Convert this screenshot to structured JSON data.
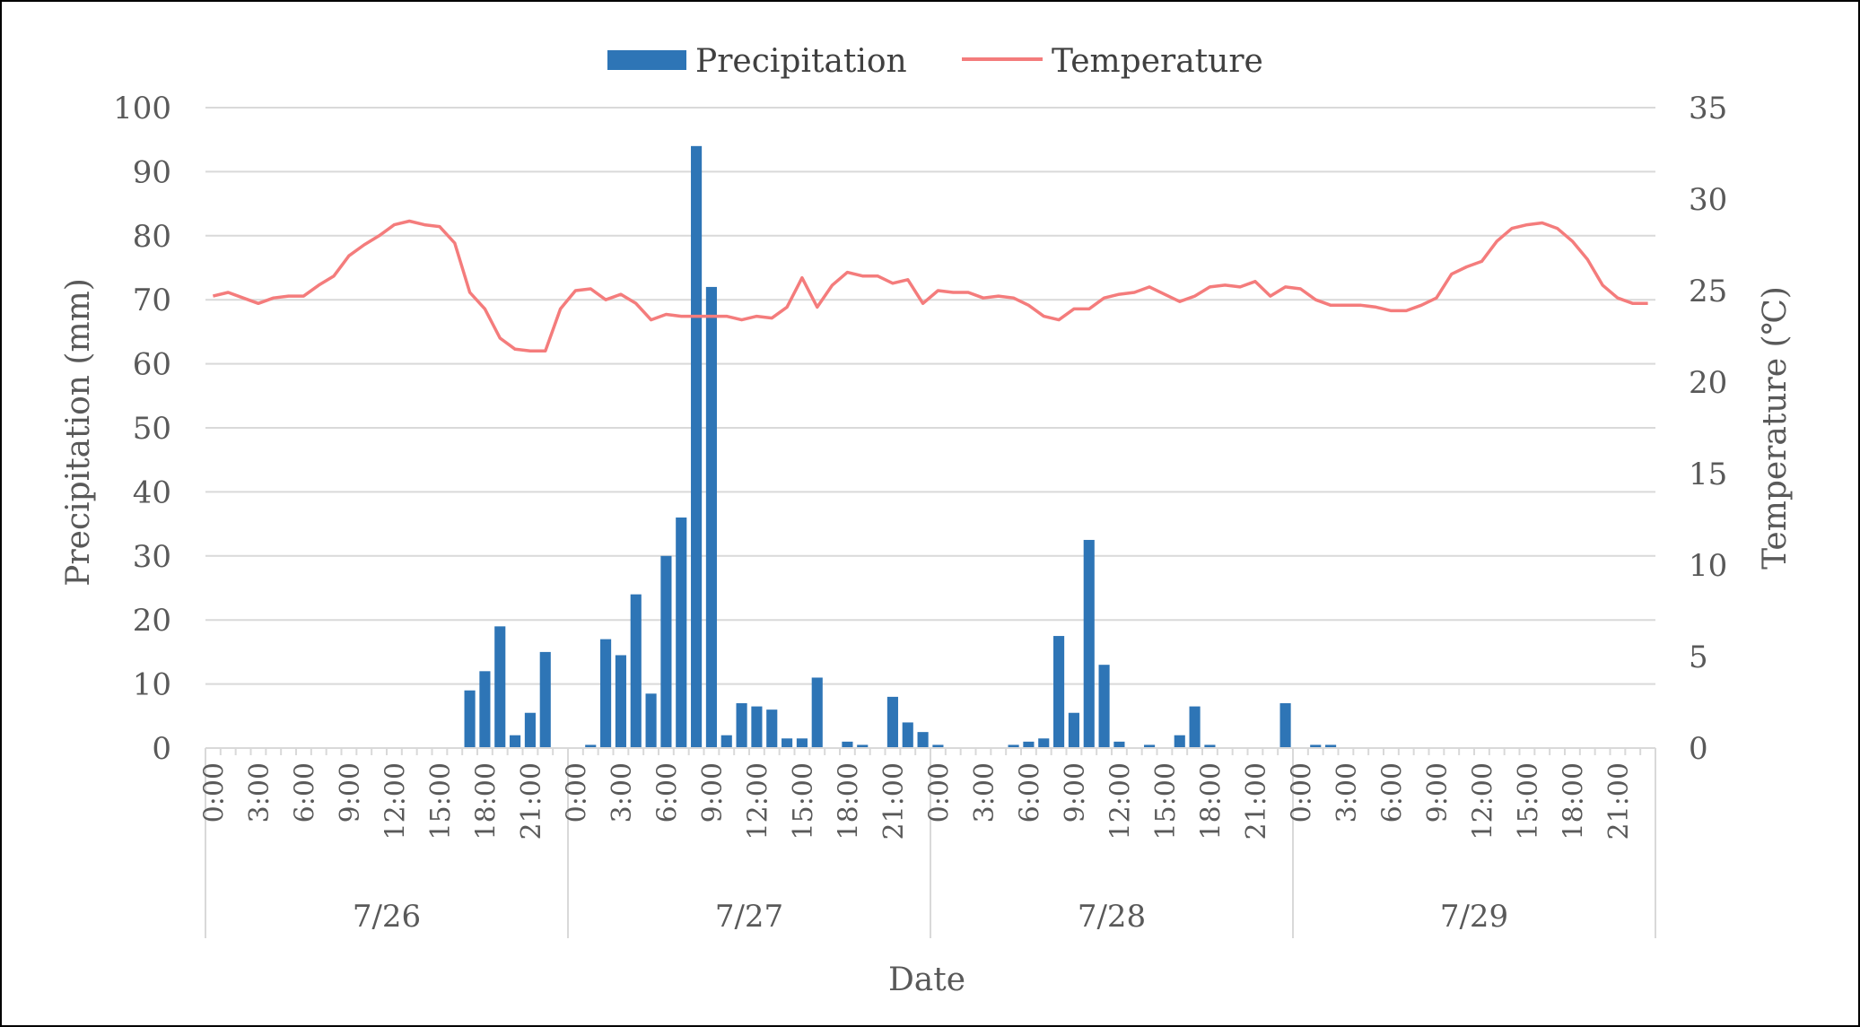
{
  "colors": {
    "precipitation": "#2e75b6",
    "temperature": "#f47c7c",
    "grid": "#d9d9d9",
    "text": "#595959"
  },
  "chart_data": {
    "type": "bar",
    "xlabel": "Date",
    "ylabel_left": "Precipitation (mm)",
    "ylabel_right": "Temperature (℃)",
    "ylim_left": [
      0,
      100
    ],
    "ylim_right": [
      0,
      35
    ],
    "yticks_left": [
      "0",
      "10",
      "20",
      "30",
      "40",
      "50",
      "60",
      "70",
      "80",
      "90",
      "100"
    ],
    "yticks_right": [
      "0",
      "5",
      "10",
      "15",
      "20",
      "25",
      "30",
      "35"
    ],
    "grid": "horizontal",
    "legend": {
      "placement": "top-center",
      "entries": [
        "Precipitation",
        "Temperature"
      ]
    },
    "days": [
      "7/26",
      "7/27",
      "7/28",
      "7/29"
    ],
    "hour_labels": [
      "0:00",
      "3:00",
      "6:00",
      "9:00",
      "12:00",
      "15:00",
      "18:00",
      "21:00"
    ],
    "series": [
      {
        "name": "Precipitation",
        "type": "bar",
        "axis": "left",
        "values": [
          0,
          0,
          0,
          0,
          0,
          0,
          0,
          0,
          0,
          0,
          0,
          0,
          0,
          0,
          0,
          0,
          0,
          9,
          12,
          19,
          2,
          5.5,
          15,
          0,
          0,
          0.5,
          17,
          14.5,
          24,
          8.5,
          30,
          36,
          94,
          72,
          2,
          7,
          6.5,
          6,
          1.5,
          1.5,
          11,
          0,
          1,
          0.5,
          0,
          8,
          4,
          2.5,
          0.5,
          0,
          0,
          0,
          0,
          0.5,
          1,
          1.5,
          17.5,
          5.5,
          32.5,
          13,
          1,
          0,
          0.5,
          0,
          2,
          6.5,
          0.5,
          0,
          0,
          0,
          0,
          7,
          0,
          0.5,
          0.5,
          0,
          0,
          0,
          0,
          0,
          0,
          0,
          0,
          0,
          0,
          0,
          0,
          0,
          0,
          0,
          0,
          0,
          0,
          0,
          0,
          0
        ]
      },
      {
        "name": "Temperature",
        "type": "line",
        "axis": "right",
        "values": [
          24.7,
          24.9,
          24.6,
          24.3,
          24.6,
          24.7,
          24.7,
          25.3,
          25.8,
          26.9,
          27.5,
          28.0,
          28.6,
          28.8,
          28.6,
          28.5,
          27.6,
          24.9,
          24.0,
          22.4,
          21.8,
          21.7,
          21.7,
          24.0,
          25.0,
          25.1,
          24.5,
          24.8,
          24.3,
          23.4,
          23.7,
          23.6,
          23.6,
          23.6,
          23.6,
          23.4,
          23.6,
          23.5,
          24.1,
          25.7,
          24.1,
          25.3,
          26.0,
          25.8,
          25.8,
          25.4,
          25.6,
          24.3,
          25.0,
          24.9,
          24.9,
          24.6,
          24.7,
          24.6,
          24.2,
          23.6,
          23.4,
          24.0,
          24.0,
          24.6,
          24.8,
          24.9,
          25.2,
          24.8,
          24.4,
          24.7,
          25.2,
          25.3,
          25.2,
          25.5,
          24.7,
          25.2,
          25.1,
          24.5,
          24.2,
          24.2,
          24.2,
          24.1,
          23.9,
          23.9,
          24.2,
          24.6,
          25.9,
          26.3,
          26.6,
          27.7,
          28.4,
          28.6,
          28.7,
          28.4,
          27.7,
          26.7,
          25.3,
          24.6,
          24.3,
          24.3
        ]
      }
    ]
  }
}
